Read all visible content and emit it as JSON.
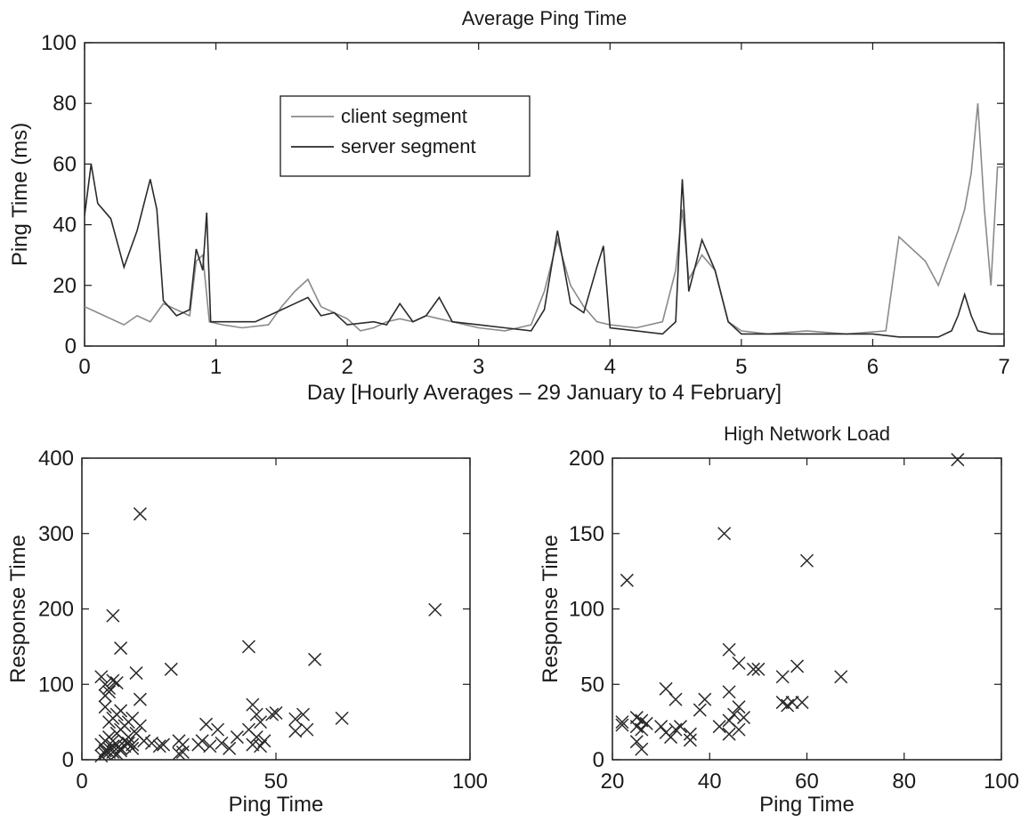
{
  "chart_data": [
    {
      "id": "ping",
      "type": "line",
      "title": "Average Ping Time",
      "xlabel": "Day [Hourly Averages – 29 January to 4 February]",
      "ylabel": "Ping Time (ms)",
      "xlim": [
        0,
        7
      ],
      "ylim": [
        0,
        100
      ],
      "xticks": [
        "0",
        "1",
        "2",
        "3",
        "4",
        "5",
        "6",
        "7"
      ],
      "yticks": [
        "0",
        "20",
        "40",
        "60",
        "80",
        "100"
      ],
      "legend": {
        "placement": "upper-left",
        "entries": [
          "client segment",
          "server segment"
        ]
      },
      "series": [
        {
          "name": "client segment",
          "color": "#8a8a8a",
          "points": [
            [
              0,
              13
            ],
            [
              0.1,
              11
            ],
            [
              0.2,
              9
            ],
            [
              0.3,
              7
            ],
            [
              0.4,
              10
            ],
            [
              0.5,
              8
            ],
            [
              0.6,
              14
            ],
            [
              0.7,
              12
            ],
            [
              0.8,
              10
            ],
            [
              0.85,
              28
            ],
            [
              0.9,
              30
            ],
            [
              0.95,
              8
            ],
            [
              1.05,
              7
            ],
            [
              1.2,
              6
            ],
            [
              1.4,
              7
            ],
            [
              1.5,
              13
            ],
            [
              1.6,
              18
            ],
            [
              1.7,
              22
            ],
            [
              1.8,
              13
            ],
            [
              1.9,
              11
            ],
            [
              2.0,
              9
            ],
            [
              2.1,
              5
            ],
            [
              2.2,
              6
            ],
            [
              2.3,
              8
            ],
            [
              2.4,
              9
            ],
            [
              2.5,
              8
            ],
            [
              2.6,
              10
            ],
            [
              2.7,
              9
            ],
            [
              2.8,
              8
            ],
            [
              2.9,
              7
            ],
            [
              3.0,
              6
            ],
            [
              3.2,
              5
            ],
            [
              3.4,
              7
            ],
            [
              3.5,
              18
            ],
            [
              3.6,
              35
            ],
            [
              3.7,
              20
            ],
            [
              3.8,
              13
            ],
            [
              3.9,
              8
            ],
            [
              4.0,
              7
            ],
            [
              4.2,
              6
            ],
            [
              4.4,
              8
            ],
            [
              4.5,
              25
            ],
            [
              4.55,
              45
            ],
            [
              4.6,
              22
            ],
            [
              4.7,
              30
            ],
            [
              4.8,
              25
            ],
            [
              4.9,
              8
            ],
            [
              5.0,
              5
            ],
            [
              5.2,
              4
            ],
            [
              5.5,
              5
            ],
            [
              5.8,
              4
            ],
            [
              6.1,
              5
            ],
            [
              6.2,
              36
            ],
            [
              6.4,
              28
            ],
            [
              6.5,
              20
            ],
            [
              6.6,
              32
            ],
            [
              6.65,
              38
            ],
            [
              6.7,
              45
            ],
            [
              6.75,
              57
            ],
            [
              6.8,
              80
            ],
            [
              6.85,
              45
            ],
            [
              6.9,
              20
            ],
            [
              6.95,
              59
            ],
            [
              7.0,
              59
            ]
          ]
        },
        {
          "name": "server segment",
          "color": "#2a2a2a",
          "points": [
            [
              0,
              43
            ],
            [
              0.05,
              60
            ],
            [
              0.1,
              47
            ],
            [
              0.2,
              42
            ],
            [
              0.3,
              26
            ],
            [
              0.4,
              38
            ],
            [
              0.5,
              55
            ],
            [
              0.55,
              45
            ],
            [
              0.6,
              15
            ],
            [
              0.7,
              10
            ],
            [
              0.8,
              12
            ],
            [
              0.85,
              32
            ],
            [
              0.9,
              25
            ],
            [
              0.93,
              44
            ],
            [
              0.96,
              8
            ],
            [
              1.1,
              8
            ],
            [
              1.3,
              8
            ],
            [
              1.5,
              12
            ],
            [
              1.6,
              14
            ],
            [
              1.7,
              16
            ],
            [
              1.8,
              10
            ],
            [
              1.9,
              11
            ],
            [
              2.0,
              7
            ],
            [
              2.2,
              8
            ],
            [
              2.3,
              7
            ],
            [
              2.4,
              14
            ],
            [
              2.5,
              8
            ],
            [
              2.6,
              10
            ],
            [
              2.7,
              16
            ],
            [
              2.8,
              8
            ],
            [
              3.0,
              7
            ],
            [
              3.2,
              6
            ],
            [
              3.4,
              5
            ],
            [
              3.5,
              12
            ],
            [
              3.6,
              38
            ],
            [
              3.7,
              14
            ],
            [
              3.8,
              11
            ],
            [
              3.9,
              26
            ],
            [
              3.95,
              33
            ],
            [
              4.0,
              6
            ],
            [
              4.2,
              5
            ],
            [
              4.4,
              4
            ],
            [
              4.5,
              8
            ],
            [
              4.55,
              55
            ],
            [
              4.6,
              18
            ],
            [
              4.7,
              35
            ],
            [
              4.8,
              25
            ],
            [
              4.9,
              8
            ],
            [
              5.0,
              4
            ],
            [
              5.3,
              4
            ],
            [
              5.5,
              4
            ],
            [
              5.8,
              4
            ],
            [
              6.0,
              4
            ],
            [
              6.2,
              3
            ],
            [
              6.4,
              3
            ],
            [
              6.5,
              3
            ],
            [
              6.6,
              5
            ],
            [
              6.65,
              10
            ],
            [
              6.7,
              17
            ],
            [
              6.75,
              10
            ],
            [
              6.8,
              5
            ],
            [
              6.9,
              4
            ],
            [
              7.0,
              4
            ]
          ]
        }
      ]
    },
    {
      "id": "scatter-all",
      "type": "scatter",
      "title": "",
      "xlabel": "Ping Time",
      "ylabel": "Response Time",
      "xlim": [
        0,
        100
      ],
      "ylim": [
        0,
        400
      ],
      "xticks": [
        "0",
        "50",
        "100"
      ],
      "yticks": [
        "0",
        "100",
        "200",
        "300",
        "400"
      ],
      "points": [
        [
          15,
          326
        ],
        [
          8,
          191
        ],
        [
          10,
          148
        ],
        [
          5,
          110
        ],
        [
          6,
          100
        ],
        [
          7,
          95
        ],
        [
          8,
          105
        ],
        [
          9,
          102
        ],
        [
          7,
          90
        ],
        [
          6,
          85
        ],
        [
          14,
          115
        ],
        [
          15,
          80
        ],
        [
          23,
          120
        ],
        [
          43,
          150
        ],
        [
          60,
          133
        ],
        [
          91,
          199
        ],
        [
          44,
          73
        ],
        [
          49,
          60
        ],
        [
          45,
          60
        ],
        [
          46,
          50
        ],
        [
          43,
          40
        ],
        [
          45,
          30
        ],
        [
          47,
          25
        ],
        [
          40,
          30
        ],
        [
          38,
          15
        ],
        [
          32,
          47
        ],
        [
          35,
          40
        ],
        [
          57,
          60
        ],
        [
          55,
          54
        ],
        [
          58,
          40
        ],
        [
          55,
          38
        ],
        [
          67,
          55
        ],
        [
          30,
          20
        ],
        [
          33,
          18
        ],
        [
          36,
          22
        ],
        [
          26,
          20
        ],
        [
          25,
          25
        ],
        [
          20,
          18
        ],
        [
          18,
          22
        ],
        [
          16,
          25
        ],
        [
          13,
          20
        ],
        [
          12,
          30
        ],
        [
          11,
          25
        ],
        [
          10,
          15
        ],
        [
          9,
          20
        ],
        [
          8,
          18
        ],
        [
          7,
          15
        ],
        [
          6,
          12
        ],
        [
          5,
          20
        ],
        [
          6,
          25
        ],
        [
          7,
          30
        ],
        [
          8,
          10
        ],
        [
          9,
          8
        ],
        [
          10,
          12
        ],
        [
          11,
          18
        ],
        [
          12,
          22
        ],
        [
          13,
          15
        ],
        [
          5,
          5
        ],
        [
          6,
          8
        ],
        [
          7,
          10
        ],
        [
          8,
          25
        ],
        [
          9,
          35
        ],
        [
          10,
          40
        ],
        [
          11,
          45
        ],
        [
          7,
          50
        ],
        [
          8,
          55
        ],
        [
          9,
          60
        ],
        [
          10,
          65
        ],
        [
          6,
          70
        ],
        [
          14,
          35
        ],
        [
          15,
          45
        ],
        [
          12,
          50
        ],
        [
          13,
          55
        ],
        [
          25,
          8
        ],
        [
          26,
          10
        ],
        [
          21,
          20
        ],
        [
          44,
          20
        ],
        [
          46,
          18
        ],
        [
          31,
          25
        ],
        [
          50,
          62
        ]
      ]
    },
    {
      "id": "scatter-high",
      "type": "scatter",
      "title": "High Network Load",
      "xlabel": "Ping Time",
      "ylabel": "Response Time",
      "xlim": [
        20,
        100
      ],
      "ylim": [
        0,
        200
      ],
      "xticks": [
        "20",
        "40",
        "60",
        "80",
        "100"
      ],
      "yticks": [
        "0",
        "50",
        "100",
        "150",
        "200"
      ],
      "points": [
        [
          91,
          199
        ],
        [
          43,
          150
        ],
        [
          60,
          132
        ],
        [
          23,
          119
        ],
        [
          44,
          73
        ],
        [
          46,
          64
        ],
        [
          49,
          60
        ],
        [
          50,
          60
        ],
        [
          58,
          62
        ],
        [
          55,
          55
        ],
        [
          67,
          55
        ],
        [
          31,
          47
        ],
        [
          33,
          40
        ],
        [
          39,
          40
        ],
        [
          44,
          45
        ],
        [
          38,
          33
        ],
        [
          42,
          22
        ],
        [
          44,
          26
        ],
        [
          45,
          30
        ],
        [
          46,
          35
        ],
        [
          47,
          28
        ],
        [
          46,
          20
        ],
        [
          44,
          17
        ],
        [
          55,
          38
        ],
        [
          57,
          38
        ],
        [
          59,
          38
        ],
        [
          36,
          17
        ],
        [
          36,
          13
        ],
        [
          32,
          15
        ],
        [
          31,
          18
        ],
        [
          33,
          20
        ],
        [
          30,
          22
        ],
        [
          22,
          23
        ],
        [
          22,
          25
        ],
        [
          25,
          22
        ],
        [
          25,
          28
        ],
        [
          26,
          26
        ],
        [
          27,
          24
        ],
        [
          26,
          20
        ],
        [
          25,
          12
        ],
        [
          26,
          7
        ],
        [
          34,
          22
        ],
        [
          56,
          36
        ]
      ]
    }
  ]
}
